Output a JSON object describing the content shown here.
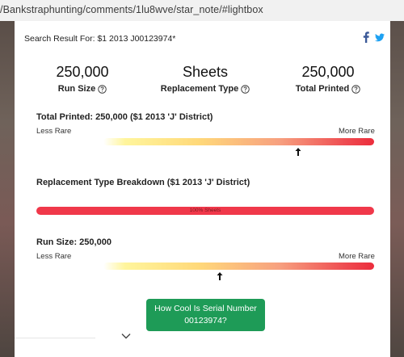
{
  "browser": {
    "url": "/Bankstraphunting/comments/1lu8wve/star_note/#lightbox"
  },
  "modal": {
    "search_label": "Search Result For: $1 2013 J00123974*",
    "share": {
      "facebook_icon": "facebook-icon",
      "twitter_icon": "twitter-icon",
      "facebook_color": "#3b5998",
      "twitter_color": "#1da1f2"
    },
    "stats": [
      {
        "value": "250,000",
        "label": "Run Size"
      },
      {
        "value": "Sheets",
        "label": "Replacement Type"
      },
      {
        "value": "250,000",
        "label": "Total Printed"
      }
    ],
    "total_printed_section": {
      "title": "Total Printed: 250,000 ($1 2013 'J' District)",
      "less_rare": "Less Rare",
      "more_rare": "More Rare",
      "marker_position": 0.72
    },
    "breakdown_section": {
      "title": "Replacement Type Breakdown ($1 2013 'J' District)",
      "bar_label": "100% Sheets",
      "bar_fraction": 1.0,
      "bar_color": "#f0384a"
    },
    "run_size_section": {
      "title": "Run Size: 250,000",
      "less_rare": "Less Rare",
      "more_rare": "More Rare",
      "marker_position": 0.43
    },
    "cool_button": {
      "line1": "How Cool Is Serial Number",
      "line2": "00123974?",
      "color": "#1e9b57"
    },
    "expand_icon": "chevron-down-icon"
  }
}
